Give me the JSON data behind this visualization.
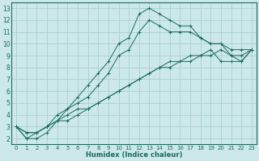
{
  "xlabel": "Humidex (Indice chaleur)",
  "background_color": "#cce8e8",
  "grid_color": "#aacfcf",
  "line_color": "#1a6b5a",
  "xlim": [
    -0.5,
    23.5
  ],
  "ylim": [
    1.5,
    13.5
  ],
  "xticks": [
    0,
    1,
    2,
    3,
    4,
    5,
    6,
    7,
    8,
    9,
    10,
    11,
    12,
    13,
    14,
    15,
    16,
    17,
    18,
    19,
    20,
    21,
    22,
    23
  ],
  "yticks": [
    2,
    3,
    4,
    5,
    6,
    7,
    8,
    9,
    10,
    11,
    12,
    13
  ],
  "line1_x": [
    0,
    1,
    2,
    3,
    4,
    5,
    6,
    7,
    8,
    9,
    10,
    11,
    12,
    13,
    14,
    15,
    16,
    17,
    18,
    19,
    20,
    21,
    22,
    23
  ],
  "line1_y": [
    3,
    2,
    2,
    2.5,
    3.5,
    4.5,
    5.5,
    6.5,
    7.5,
    8.5,
    10,
    10.5,
    12.5,
    13,
    12.5,
    12,
    11.5,
    11.5,
    10.5,
    10,
    10,
    9.5,
    9.5,
    9.5
  ],
  "line2_x": [
    0,
    1,
    2,
    3,
    4,
    5,
    6,
    7,
    8,
    9,
    10,
    11,
    12,
    13,
    14,
    15,
    16,
    17,
    18,
    19,
    20,
    21,
    22,
    23
  ],
  "line2_y": [
    3,
    2,
    2.5,
    3,
    4,
    4.5,
    5,
    5.5,
    6.5,
    7.5,
    9,
    9.5,
    11,
    12,
    11.5,
    11,
    11,
    11,
    10.5,
    10,
    10,
    9,
    9,
    9.5
  ],
  "line3_x": [
    0,
    1,
    2,
    3,
    4,
    5,
    6,
    7,
    8,
    9,
    10,
    11,
    12,
    13,
    14,
    15,
    16,
    17,
    18,
    19,
    20,
    21,
    22,
    23
  ],
  "line3_y": [
    3,
    2.5,
    2.5,
    3,
    3.5,
    4,
    4.5,
    4.5,
    5,
    5.5,
    6,
    6.5,
    7,
    7.5,
    8,
    8,
    8.5,
    8.5,
    9,
    9,
    9.5,
    9,
    8.5,
    9.5
  ],
  "line4_x": [
    0,
    1,
    2,
    3,
    4,
    5,
    6,
    7,
    8,
    9,
    10,
    11,
    12,
    13,
    14,
    15,
    16,
    17,
    18,
    19,
    20,
    21,
    22,
    23
  ],
  "line4_y": [
    3,
    2.5,
    2.5,
    3,
    3.5,
    3.5,
    4,
    4.5,
    5,
    5.5,
    6,
    6.5,
    7,
    7.5,
    8,
    8.5,
    8.5,
    9,
    9,
    9.5,
    8.5,
    8.5,
    8.5,
    9.5
  ],
  "xtick_fontsize": 5,
  "ytick_fontsize": 5.5,
  "xlabel_fontsize": 6
}
